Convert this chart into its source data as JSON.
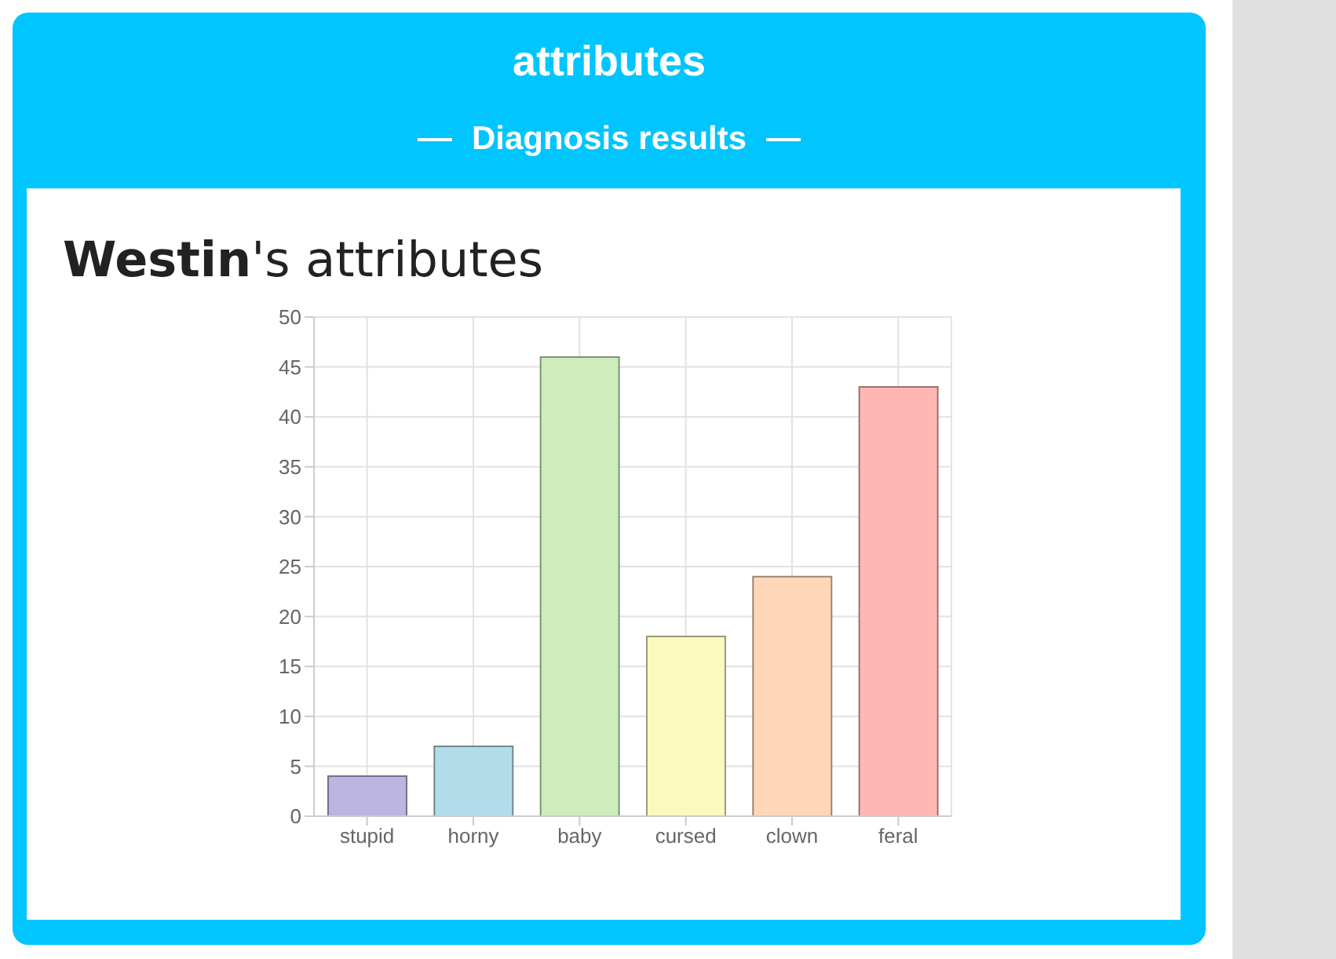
{
  "chart_data": {
    "type": "bar",
    "title": "Westin's attributes",
    "annotations": [
      "attributes",
      "Diagnosis results"
    ],
    "categories": [
      "stupid",
      "horny",
      "baby",
      "cursed",
      "clown",
      "feral"
    ],
    "values": [
      4,
      7,
      46,
      18,
      24,
      43
    ],
    "colors": [
      "#bcb5e0",
      "#b2dcea",
      "#cdedbd",
      "#fbf9be",
      "#fdd7b8",
      "#ffb7b6"
    ],
    "ylim": [
      0,
      50
    ],
    "yticks": [
      0,
      5,
      10,
      15,
      20,
      25,
      30,
      35,
      40,
      45,
      50
    ],
    "grid": true
  }
}
